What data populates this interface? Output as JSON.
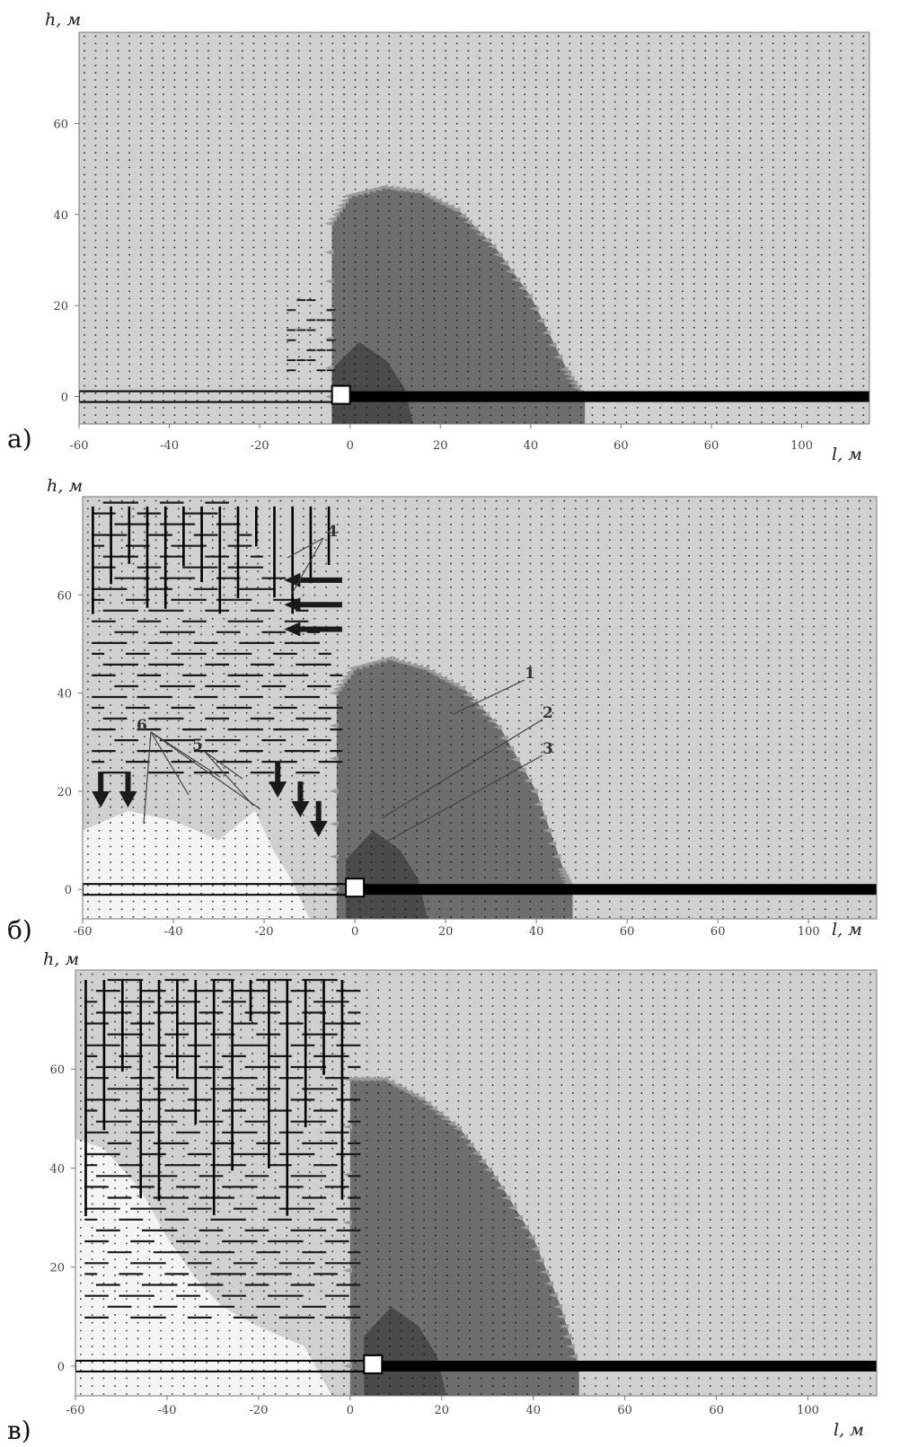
{
  "chart_data": [
    {
      "panel": "а)",
      "type": "heatmap",
      "ylabel": "h, м",
      "xlabel": "l, м",
      "x_ticks": [
        "-60",
        "-40",
        "-20",
        "0",
        "20",
        "40",
        "60",
        "60",
        "100"
      ],
      "y_ticks": [
        "0",
        "20",
        "40",
        "60"
      ],
      "xlim": [
        -60,
        115
      ],
      "ylim": [
        -6,
        80
      ],
      "pipe_level": 0,
      "source_l": -2,
      "plume_outline": [
        [
          -4,
          0
        ],
        [
          -4,
          38
        ],
        [
          0,
          44
        ],
        [
          8,
          46
        ],
        [
          16,
          45
        ],
        [
          24,
          41
        ],
        [
          32,
          33
        ],
        [
          40,
          22
        ],
        [
          48,
          6
        ],
        [
          52,
          0
        ]
      ],
      "annotations": [],
      "colors": {
        "background": "#d0d0d0",
        "plume": "#6e6e6e",
        "core": "#4a4a4a",
        "pipe": "#000000",
        "dots": "#111111"
      }
    },
    {
      "panel": "б)",
      "type": "heatmap",
      "ylabel": "h, м",
      "xlabel": "l, м",
      "x_ticks": [
        "-60",
        "-40",
        "-20",
        "0",
        "20",
        "40",
        "60",
        "60",
        "100"
      ],
      "y_ticks": [
        "0",
        "20",
        "40",
        "60"
      ],
      "xlim": [
        -60,
        115
      ],
      "ylim": [
        -6,
        80
      ],
      "pipe_level": 0,
      "source_l": 0,
      "plume_outline": [
        [
          -4,
          0
        ],
        [
          -4,
          40
        ],
        [
          0,
          45
        ],
        [
          8,
          47
        ],
        [
          16,
          45
        ],
        [
          24,
          41
        ],
        [
          32,
          33
        ],
        [
          40,
          20
        ],
        [
          46,
          4
        ],
        [
          48,
          0
        ]
      ],
      "annotations": [
        {
          "label": "1"
        },
        {
          "label": "2"
        },
        {
          "label": "3"
        },
        {
          "label": "4"
        },
        {
          "label": "5"
        },
        {
          "label": "6"
        }
      ],
      "colors": {
        "background": "#d0d0d0",
        "plume": "#6e6e6e",
        "core": "#4a4a4a",
        "pipe": "#000000",
        "dots": "#111111"
      }
    },
    {
      "panel": "в)",
      "type": "heatmap",
      "ylabel": "h, м",
      "xlabel": "l, м",
      "x_ticks": [
        "-60",
        "-40",
        "-20",
        "0",
        "20",
        "40",
        "60",
        "60",
        "100"
      ],
      "y_ticks": [
        "0",
        "20",
        "40",
        "60"
      ],
      "xlim": [
        -60,
        115
      ],
      "ylim": [
        -6,
        80
      ],
      "pipe_level": 0,
      "source_l": 5,
      "plume_outline": [
        [
          0,
          0
        ],
        [
          0,
          58
        ],
        [
          8,
          58
        ],
        [
          16,
          54
        ],
        [
          24,
          48
        ],
        [
          32,
          38
        ],
        [
          40,
          26
        ],
        [
          46,
          12
        ],
        [
          50,
          0
        ]
      ],
      "annotations": [],
      "colors": {
        "background": "#d0d0d0",
        "plume": "#6e6e6e",
        "core": "#4a4a4a",
        "pipe": "#000000",
        "dots": "#111111"
      }
    }
  ]
}
